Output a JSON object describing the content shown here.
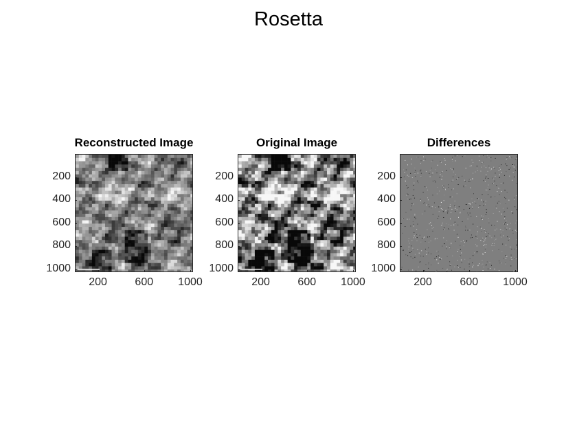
{
  "figure": {
    "title": "Rosetta"
  },
  "colors": {
    "axis": "#262626",
    "background": "#ffffff"
  },
  "chart_data": [
    {
      "type": "heatmap",
      "title": "Reconstructed Image",
      "colormap": "gray",
      "xticks": [
        200,
        600,
        1000
      ],
      "yticks": [
        200,
        400,
        600,
        800,
        1000
      ],
      "xlim": [
        0,
        1024
      ],
      "ylim": [
        0,
        1024
      ],
      "ydir": "reverse"
    },
    {
      "type": "heatmap",
      "title": "Original Image",
      "colormap": "gray",
      "xticks": [
        200,
        600,
        1000
      ],
      "yticks": [
        200,
        400,
        600,
        800,
        1000
      ],
      "xlim": [
        0,
        1024
      ],
      "ylim": [
        0,
        1024
      ],
      "ydir": "reverse"
    },
    {
      "type": "heatmap",
      "title": "Differences",
      "colormap": "gray",
      "xticks": [
        200,
        600,
        1000
      ],
      "yticks": [
        200,
        400,
        600,
        800,
        1000
      ],
      "xlim": [
        0,
        1024
      ],
      "ylim": [
        0,
        1024
      ],
      "ydir": "reverse"
    }
  ]
}
